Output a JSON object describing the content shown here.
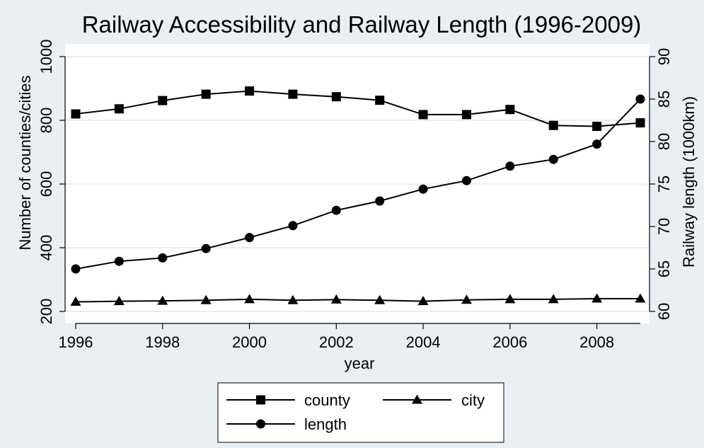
{
  "chart_data": {
    "type": "line",
    "title": "Railway Accessibility and Railway Length (1996-2009)",
    "xlabel": "year",
    "ylabel_left": "Number of counties/cities",
    "ylabel_right": "Railway length (1000km)",
    "x": [
      1996,
      1997,
      1998,
      1999,
      2000,
      2001,
      2002,
      2003,
      2004,
      2005,
      2006,
      2007,
      2008,
      2009
    ],
    "xticks": [
      1996,
      1998,
      2000,
      2002,
      2004,
      2006,
      2008
    ],
    "xlim": [
      1996,
      2009
    ],
    "ylim_left": [
      200,
      1000
    ],
    "yticks_left": [
      200,
      400,
      600,
      800,
      1000
    ],
    "ylim_right": [
      60,
      90
    ],
    "yticks_right": [
      60,
      65,
      70,
      75,
      80,
      85,
      90
    ],
    "grid": true,
    "legend_position": "bottom",
    "series": [
      {
        "name": "county",
        "axis": "left",
        "marker": "square",
        "values": [
          820,
          836,
          862,
          882,
          892,
          882,
          874,
          863,
          818,
          818,
          834,
          784,
          781,
          792
        ]
      },
      {
        "name": "city",
        "axis": "left",
        "marker": "triangle",
        "values": [
          230,
          232,
          233,
          235,
          238,
          235,
          237,
          235,
          232,
          236,
          238,
          238,
          240,
          240
        ]
      },
      {
        "name": "length",
        "axis": "right",
        "marker": "circle",
        "values": [
          65.0,
          65.9,
          66.3,
          67.4,
          68.7,
          70.1,
          71.9,
          73.0,
          74.4,
          75.4,
          77.1,
          77.9,
          79.7,
          85.0
        ]
      }
    ]
  }
}
